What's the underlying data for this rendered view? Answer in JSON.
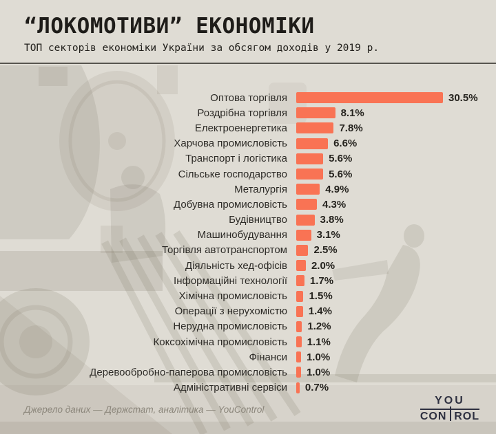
{
  "header": {
    "title": "“ЛОКОМОТИВИ” ЕКОНОМІКИ",
    "subtitle": "ТОП секторів економіки України за обсягом доходів у 2019 р."
  },
  "chart_data": {
    "type": "bar",
    "orientation": "horizontal",
    "title": "“ЛОКОМОТИВИ” ЕКОНОМІКИ",
    "subtitle": "ТОП секторів економіки України за обсягом доходів у 2019 р.",
    "unit": "%",
    "xlim": [
      0,
      30.5
    ],
    "grid": false,
    "legend": false,
    "bar_color": "#F97354",
    "categories": [
      "Оптова торгівля",
      "Роздрібна торгівля",
      "Електроенергетика",
      "Харчова промисловість",
      "Транспорт і логістика",
      "Сільське господарство",
      "Металургія",
      "Добувна промисловість",
      "Будівництво",
      "Машинобудування",
      "Торгівля автотранспортом",
      "Діяльність хед-офісів",
      "Інформаційні технології",
      "Хімічна промисловість",
      "Операції з нерухомістю",
      "Нерудна промисловість",
      "Коксохімічна промисловість",
      "Фінанси",
      "Деревообробно-паперова промисловість",
      "Адміністративні сервіси"
    ],
    "values": [
      30.5,
      8.1,
      7.8,
      6.6,
      5.6,
      5.6,
      4.9,
      4.3,
      3.8,
      3.1,
      2.5,
      2.0,
      1.7,
      1.5,
      1.4,
      1.2,
      1.1,
      1.0,
      1.0,
      0.7
    ],
    "value_labels": [
      "30.5%",
      "8.1%",
      "7.8%",
      "6.6%",
      "5.6%",
      "5.6%",
      "4.9%",
      "4.3%",
      "3.8%",
      "3.1%",
      "2.5%",
      "2.0%",
      "1.7%",
      "1.5%",
      "1.4%",
      "1.2%",
      "1.1%",
      "1.0%",
      "1.0%",
      "0.7%"
    ]
  },
  "footer": {
    "source": "Джерело даних — Держстат, аналітика — YouControl",
    "logo": {
      "you": "YOU",
      "control_parts": [
        "CON",
        "T",
        "ROL"
      ]
    }
  },
  "colors": {
    "background": "#DFDCD4",
    "bar": "#F97354",
    "title_text": "#1E1C19",
    "label_text": "#2D2B27",
    "value_text": "#26241F",
    "divider": "#57554F",
    "source_text": "#8B867B",
    "logo": "#2E3040"
  }
}
